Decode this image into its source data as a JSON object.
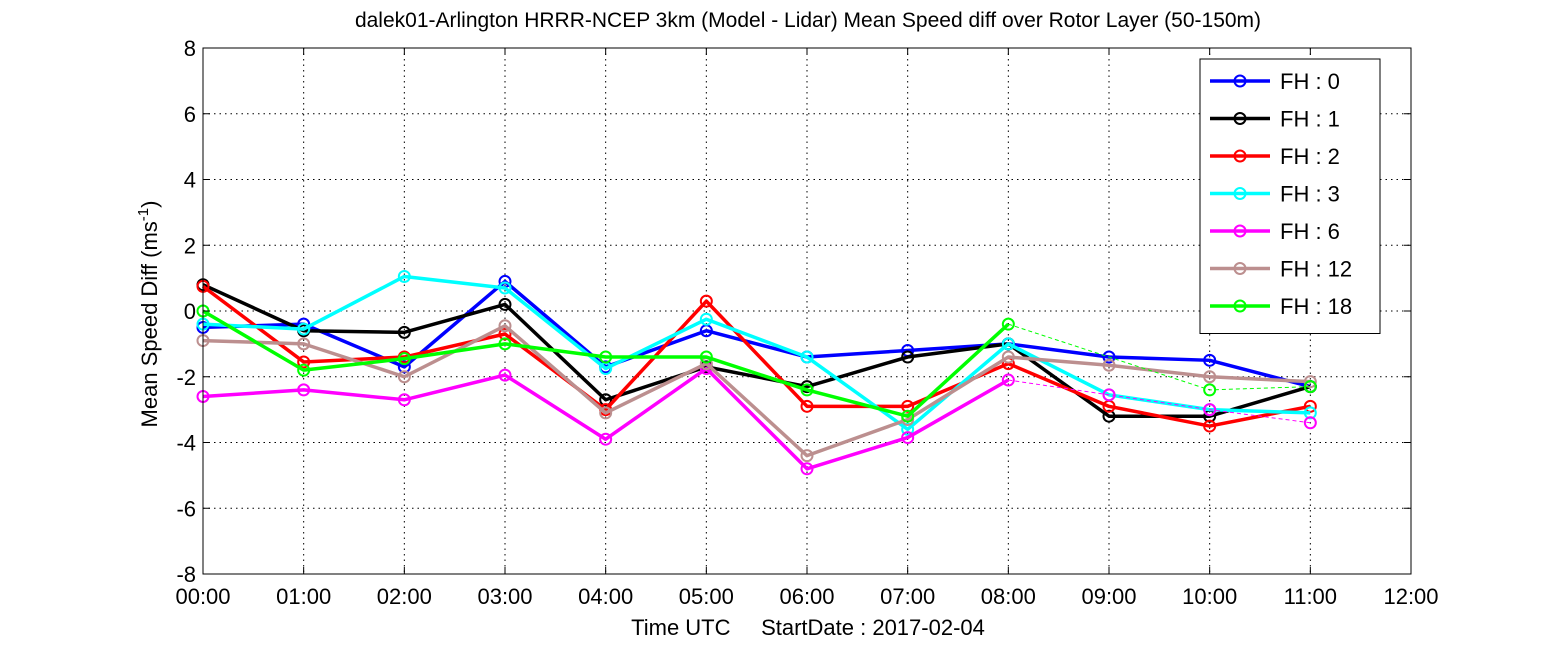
{
  "chart_data": {
    "type": "line",
    "title": "dalek01-Arlington HRRR-NCEP 3km (Model - Lidar) Mean Speed diff over Rotor Layer (50-150m)",
    "xlabel": "Time UTC     StartDate : 2017-02-04",
    "ylabel_main": "Mean Speed Diff (ms",
    "ylabel_sup": "-1",
    "ylabel_tail": ")",
    "xlim": [
      0,
      12
    ],
    "ylim": [
      -8,
      8
    ],
    "x_ticks": [
      "00:00",
      "01:00",
      "02:00",
      "03:00",
      "04:00",
      "05:00",
      "06:00",
      "07:00",
      "08:00",
      "09:00",
      "10:00",
      "11:00",
      "12:00"
    ],
    "y_ticks": [
      "8",
      "6",
      "4",
      "2",
      "0",
      "-2",
      "-4",
      "-6",
      "-8"
    ],
    "grid": true,
    "legend_position": "top-right",
    "series": [
      {
        "name": "FH : 0",
        "color": "#0000ff",
        "x": [
          0,
          1,
          2,
          3,
          4,
          5,
          6,
          7,
          8,
          9,
          10,
          11
        ],
        "values": [
          -0.5,
          -0.4,
          -1.7,
          0.9,
          -1.7,
          -0.6,
          -1.4,
          -1.2,
          -1.0,
          -1.4,
          -1.5,
          -2.3
        ],
        "dashed_after_index": null
      },
      {
        "name": "FH : 1",
        "color": "#000000",
        "x": [
          0,
          1,
          2,
          3,
          4,
          5,
          6,
          7,
          8,
          9,
          10,
          11
        ],
        "values": [
          0.8,
          -0.6,
          -0.65,
          0.2,
          -2.7,
          -1.7,
          -2.3,
          -1.4,
          -1.0,
          -3.2,
          -3.2,
          -2.3
        ],
        "dashed_after_index": null
      },
      {
        "name": "FH : 2",
        "color": "#ff0000",
        "x": [
          0,
          1,
          2,
          3,
          4,
          5,
          6,
          7,
          8,
          9,
          10,
          11
        ],
        "values": [
          0.75,
          -1.55,
          -1.4,
          -0.7,
          -3.0,
          0.3,
          -2.9,
          -2.9,
          -1.6,
          -2.9,
          -3.5,
          -2.9
        ],
        "dashed_after_index": null
      },
      {
        "name": "FH : 3",
        "color": "#00ffff",
        "x": [
          0,
          1,
          2,
          3,
          4,
          5,
          6,
          7,
          8,
          9,
          10,
          11
        ],
        "values": [
          -0.4,
          -0.55,
          1.05,
          0.7,
          -1.75,
          -0.25,
          -1.4,
          -3.6,
          -1.0,
          -2.55,
          -3.0,
          -3.1
        ],
        "dashed_after_index": null
      },
      {
        "name": "FH : 6",
        "color": "#ff00ff",
        "x": [
          0,
          1,
          2,
          3,
          4,
          5,
          6,
          7,
          8,
          9,
          10,
          11
        ],
        "values": [
          -2.6,
          -2.4,
          -2.7,
          -1.95,
          -3.9,
          -1.75,
          -4.8,
          -3.85,
          -2.1,
          -2.55,
          -3.0,
          -3.4
        ],
        "dashed_after_index": 8
      },
      {
        "name": "FH : 12",
        "color": "#bc8f8f",
        "x": [
          0,
          1,
          2,
          3,
          4,
          5,
          6,
          7,
          8,
          9,
          10,
          11
        ],
        "values": [
          -0.9,
          -1.0,
          -2.0,
          -0.45,
          -3.1,
          -1.6,
          -4.4,
          -3.3,
          -1.4,
          -1.65,
          -2.0,
          -2.15
        ],
        "dashed_after_index": null
      },
      {
        "name": "FH : 18",
        "color": "#00ff00",
        "x": [
          0,
          1,
          2,
          3,
          4,
          5,
          6,
          7,
          8,
          10,
          11
        ],
        "values": [
          0.0,
          -1.8,
          -1.45,
          -1.0,
          -1.4,
          -1.4,
          -2.4,
          -3.2,
          -0.4,
          -2.4,
          -2.3
        ],
        "dashed_after_index": 8
      }
    ]
  }
}
